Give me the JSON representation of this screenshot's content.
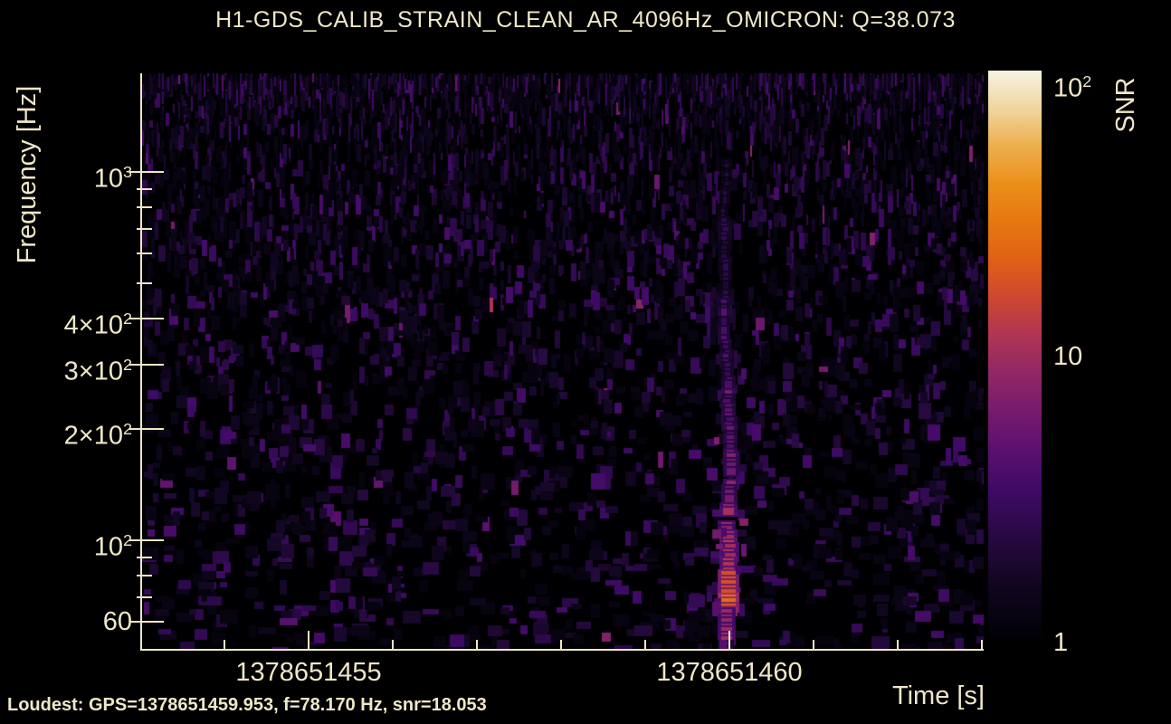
{
  "title": "H1-GDS_CALIB_STRAIN_CLEAN_AR_4096Hz_OMICRON: Q=38.073",
  "footer": {
    "loudest": "Loudest: GPS=1378651459.953, f=78.170 Hz, snr=18.053"
  },
  "chart_data": {
    "type": "heatmap",
    "subtype": "omicron-q-scan-spectrogram",
    "title": "H1-GDS_CALIB_STRAIN_CLEAN_AR_4096Hz_OMICRON: Q=38.073",
    "channel": "H1-GDS_CALIB_STRAIN_CLEAN_AR_4096Hz_OMICRON",
    "q_value": 38.073,
    "xlabel": "Time [s]",
    "ylabel": "Frequency [Hz]",
    "x_scale": "linear",
    "x_range_gps": [
      1378651453,
      1378651463
    ],
    "x_major_ticks": [
      {
        "gps": 1378651455,
        "label": "1378651455"
      },
      {
        "gps": 1378651460,
        "label": "1378651460"
      }
    ],
    "x_minor_ticks_gps": [
      1378651454,
      1378651456,
      1378651457,
      1378651458,
      1378651459,
      1378651461,
      1378651462,
      1378651463
    ],
    "y_scale": "log",
    "y_range_hz": [
      51,
      1853
    ],
    "y_major_ticks": [
      {
        "hz": 1000,
        "text": "10",
        "sup": "3"
      },
      {
        "hz": 400,
        "text": "4×10",
        "sup": "2"
      },
      {
        "hz": 300,
        "text": "3×10",
        "sup": "2"
      },
      {
        "hz": 200,
        "text": "2×10",
        "sup": "2"
      },
      {
        "hz": 100,
        "text": "10",
        "sup": "2"
      },
      {
        "hz": 60,
        "text": "60",
        "sup": ""
      }
    ],
    "y_minor_ticks_hz": [
      900,
      800,
      700,
      600,
      500,
      90,
      80,
      70
    ],
    "grid": false,
    "background_color": "#000000",
    "axis_color": "#efe6c4",
    "colorbar": {
      "label": "SNR",
      "scale": "log",
      "range": [
        1,
        100
      ],
      "colormap": "inferno-like (black-purple-red-orange-cream)",
      "labels": [
        {
          "value": 100,
          "text": "10",
          "sup": "2"
        },
        {
          "value": 10,
          "text": "10",
          "sup": ""
        },
        {
          "value": 1,
          "text": "1",
          "sup": ""
        }
      ],
      "major_tick_values": [
        10
      ],
      "minor_tick_values": [
        90,
        80,
        70,
        60,
        50,
        40,
        30,
        20,
        9,
        8,
        7,
        6,
        5,
        4,
        3,
        2
      ]
    },
    "loudest": {
      "gps": 1378651459.953,
      "frequency_hz": 78.17,
      "snr": 18.053
    },
    "features": {
      "glitch": {
        "description": "bright vertical broadband glitch track near GPS 1378651460, brightest blob near 78 Hz, fading tendril up to ~1 kHz",
        "gps": 1378651459.953,
        "peak_frequency_hz": 78.17,
        "peak_snr": 18.053,
        "frequency_extent_hz": [
          55,
          900
        ]
      },
      "background": "dense speckled low-SNR (1-5) purple noise, fine vertical grains at high frequency, coarse blobs at low frequency"
    }
  }
}
